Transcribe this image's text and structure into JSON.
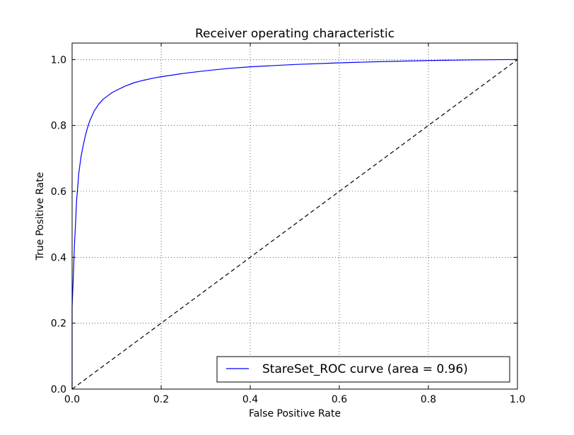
{
  "chart_data": {
    "type": "line",
    "title": "Receiver operating characteristic",
    "xlabel": "False Positive Rate",
    "ylabel": "True Positive Rate",
    "xlim": [
      0.0,
      1.0
    ],
    "ylim": [
      0.0,
      1.05
    ],
    "xticks": [
      0.0,
      0.2,
      0.4,
      0.6,
      0.8,
      1.0
    ],
    "xtick_labels": [
      "0.0",
      "0.2",
      "0.4",
      "0.6",
      "0.8",
      "1.0"
    ],
    "yticks": [
      0.0,
      0.2,
      0.4,
      0.6,
      0.8,
      1.0
    ],
    "ytick_labels": [
      "0.0",
      "0.2",
      "0.4",
      "0.6",
      "0.8",
      "1.0"
    ],
    "grid": true,
    "legend": {
      "location": "lower right",
      "entries": [
        "StareSet_ROC curve (area = 0.96)"
      ]
    },
    "series": [
      {
        "name": "StareSet_ROC curve (area = 0.96)",
        "color": "#0000ff",
        "style": "solid",
        "x": [
          0.0,
          0.0,
          0.003,
          0.005,
          0.008,
          0.01,
          0.013,
          0.015,
          0.018,
          0.02,
          0.025,
          0.03,
          0.035,
          0.04,
          0.045,
          0.05,
          0.06,
          0.07,
          0.08,
          0.09,
          0.1,
          0.12,
          0.14,
          0.16,
          0.18,
          0.2,
          0.25,
          0.3,
          0.35,
          0.4,
          0.5,
          0.6,
          0.7,
          0.8,
          0.9,
          1.0
        ],
        "y": [
          0.0,
          0.25,
          0.35,
          0.43,
          0.51,
          0.57,
          0.62,
          0.655,
          0.685,
          0.705,
          0.74,
          0.77,
          0.795,
          0.815,
          0.83,
          0.845,
          0.865,
          0.88,
          0.89,
          0.9,
          0.907,
          0.92,
          0.93,
          0.937,
          0.943,
          0.948,
          0.958,
          0.966,
          0.973,
          0.978,
          0.985,
          0.99,
          0.994,
          0.997,
          0.999,
          1.0
        ]
      },
      {
        "name": "",
        "color": "#000000",
        "style": "dashed",
        "x": [
          0.0,
          1.0
        ],
        "y": [
          0.0,
          1.0
        ]
      }
    ]
  }
}
